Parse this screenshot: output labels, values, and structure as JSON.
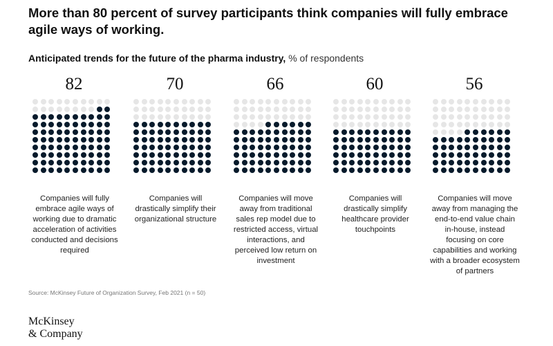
{
  "headline": "More than 80 percent of survey participants think companies will fully embrace agile ways of working.",
  "subtitle": {
    "main": "Anticipated trends for the future of the pharma industry,",
    "unit": " % of respondents"
  },
  "colors": {
    "filled": "#061a2b",
    "empty": "#e6e6e6"
  },
  "chart_data": {
    "type": "waffle",
    "grid": {
      "rows": 10,
      "cols": 10
    },
    "unit": "% of respondents",
    "categories": [
      "Companies will fully embrace agile ways of working due to dramatic acceleration of activities conducted and decisions required",
      "Companies will drastically simplify their organizational structure",
      "Companies will move away from traditional sales rep model due to restricted access, virtual interactions, and perceived low return on investment",
      "Companies will drastically simplify healthcare provider touchpoints",
      "Companies will move away from managing the end-to-end value chain in-house, instead focusing on core capabilities and working with a broader ecosystem of partners"
    ],
    "values": [
      82,
      70,
      66,
      60,
      56
    ]
  },
  "source": "Source: McKinsey Future of Organization Survey, Feb 2021 (n = 50)",
  "logo": {
    "line1": "McKinsey",
    "line2": "& Company"
  }
}
